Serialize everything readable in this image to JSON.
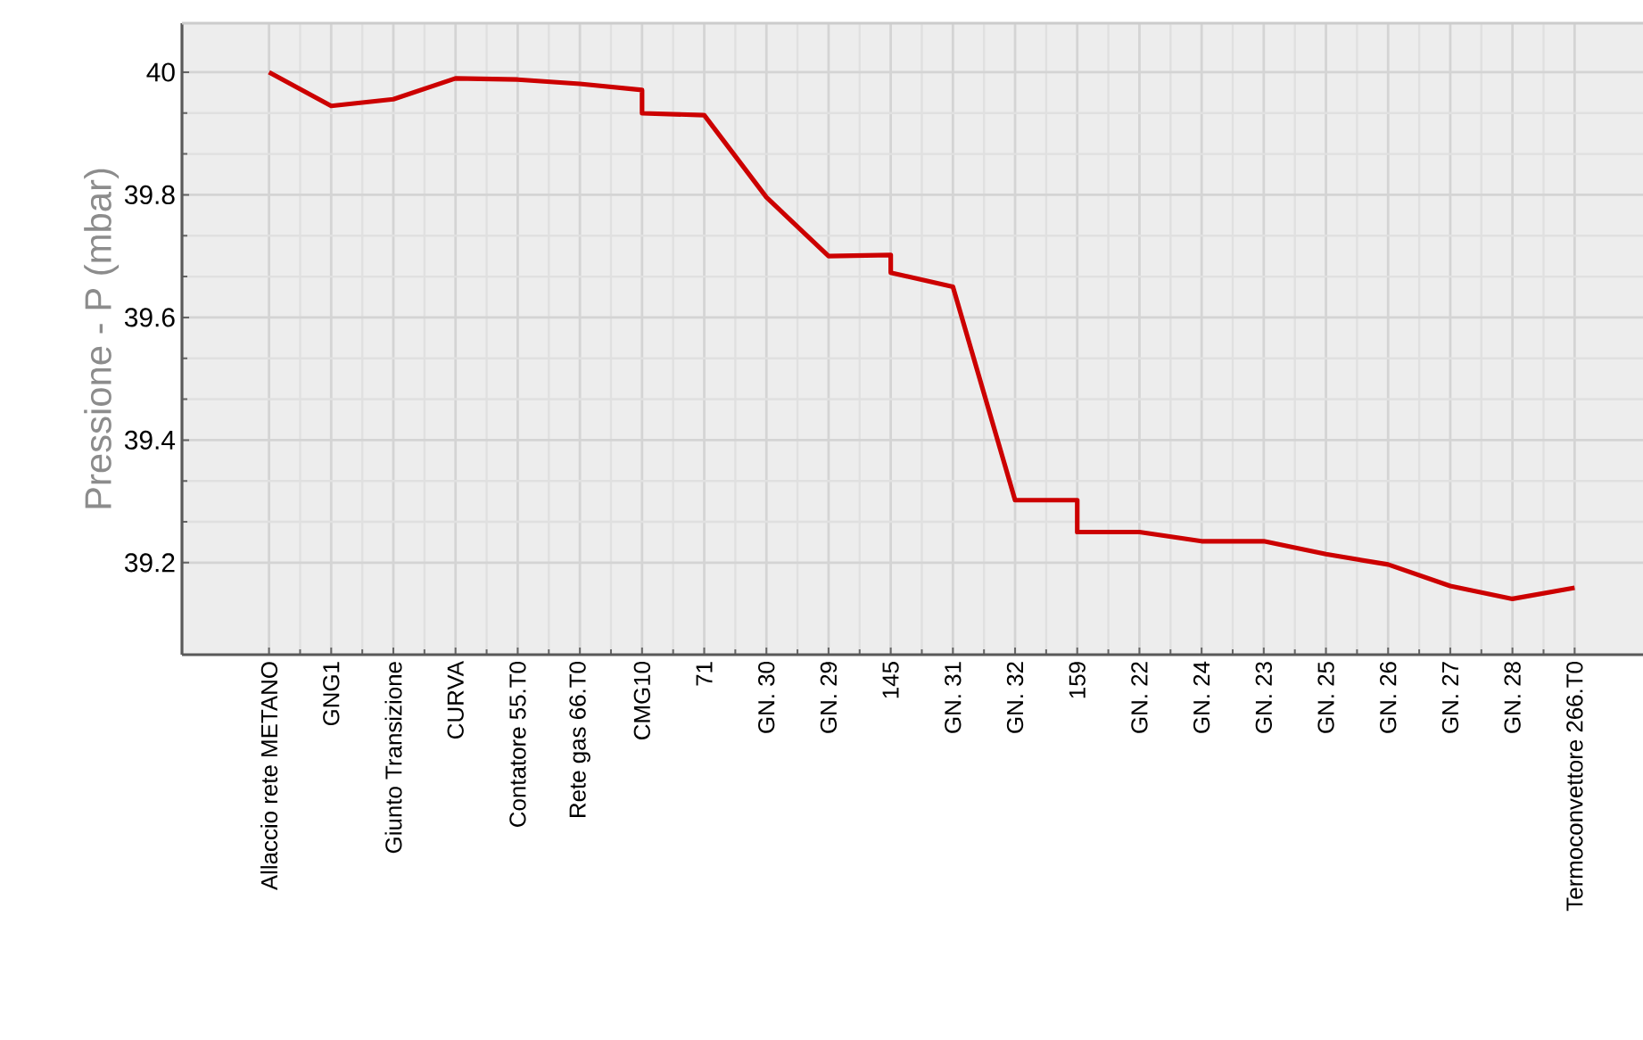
{
  "chart_data": {
    "type": "line",
    "ylabel": "Pressione - P (mbar)",
    "categories": [
      "Allaccio rete METANO",
      "GNG1",
      "Giunto Transizione",
      "CURVA",
      "Contatore 55.T0",
      "Rete gas 66.T0",
      "CMG10",
      "71",
      "GN. 30",
      "GN. 29",
      "145",
      "GN. 31",
      "GN. 32",
      "159",
      "GN. 22",
      "GN. 24",
      "GN. 23",
      "GN. 25",
      "GN. 26",
      "GN. 27",
      "GN. 28",
      "Termoconvettore 266.T0"
    ],
    "series": [
      {
        "color": "#cc0000",
        "x": [
          "Allaccio rete METANO",
          "GNG1",
          "Giunto Transizione",
          "CURVA",
          "Contatore 55.T0",
          "Rete gas 66.T0",
          "CMG10",
          "CMG10",
          "71",
          "GN. 30",
          "GN. 29",
          "145",
          "145",
          "GN. 31",
          "GN. 32",
          "159",
          "159",
          "GN. 22",
          "GN. 24",
          "GN. 23",
          "GN. 25",
          "GN. 26",
          "GN. 27",
          "GN. 28",
          "Termoconvettore 266.T0"
        ],
        "values": [
          40.0,
          39.945,
          39.956,
          39.99,
          39.988,
          39.981,
          39.971,
          39.933,
          39.93,
          39.796,
          39.7,
          39.702,
          39.673,
          39.65,
          39.302,
          39.302,
          39.25,
          39.25,
          39.235,
          39.235,
          39.214,
          39.197,
          39.162,
          39.141,
          39.159
        ]
      }
    ],
    "ylim": [
      39.05,
      40.08
    ],
    "yticks": [
      39.2,
      39.4,
      39.6,
      39.8,
      40
    ],
    "grid": true
  }
}
